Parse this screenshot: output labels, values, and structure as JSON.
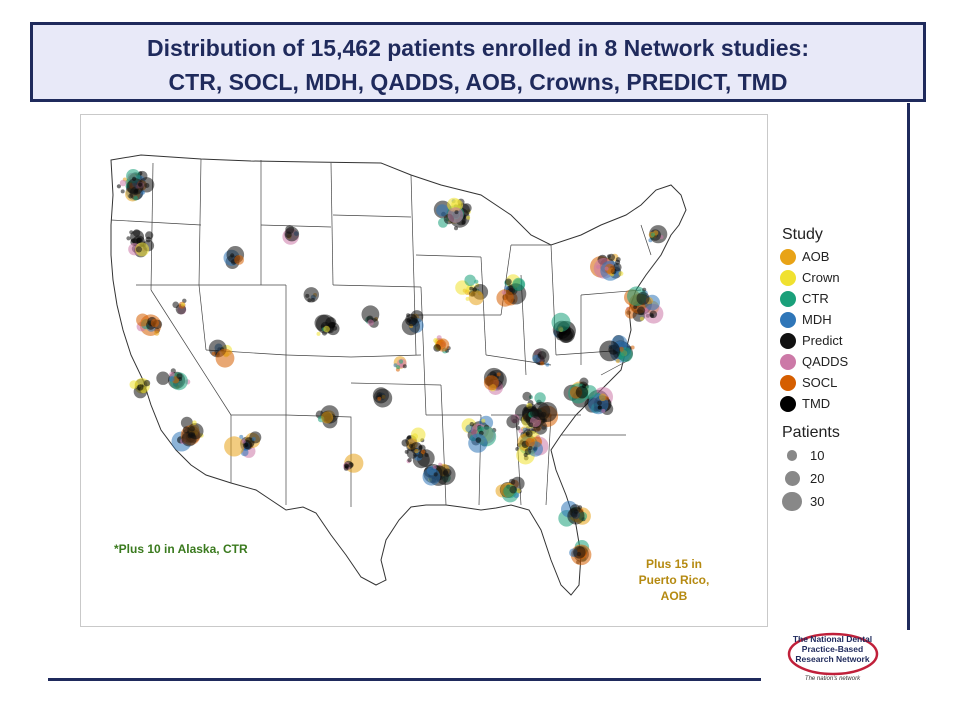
{
  "title": {
    "line1": "Distribution of 15,462 patients enrolled in 8 Network studies:",
    "line2": "CTR, SOCL, MDH, QADDS, AOB, Crowns, PREDICT, TMD"
  },
  "notes": {
    "alaska": "*Plus 10 in Alaska, CTR",
    "puerto_rico_line1": "Plus 15 in",
    "puerto_rico_line2": "Puerto Rico,",
    "puerto_rico_line3": "AOB"
  },
  "legend": {
    "study_title": "Study",
    "studies": [
      {
        "label": "AOB",
        "color": "#e8a317"
      },
      {
        "label": "Crown",
        "color": "#f0e130"
      },
      {
        "label": "CTR",
        "color": "#1aa07a"
      },
      {
        "label": "MDH",
        "color": "#2f76b8"
      },
      {
        "label": "Predict",
        "color": "#111111"
      },
      {
        "label": "QADDS",
        "color": "#cc79a7"
      },
      {
        "label": "SOCL",
        "color": "#d55e00"
      },
      {
        "label": "TMD",
        "color": "#000000"
      }
    ],
    "patients_title": "Patients",
    "sizes": [
      {
        "label": "10",
        "value": 10
      },
      {
        "label": "20",
        "value": 20
      },
      {
        "label": "30",
        "value": 30
      }
    ]
  },
  "logo": {
    "line1": "The National Dental",
    "line2": "Practice-Based",
    "line3": "Research Network",
    "tagline": "The nation's network"
  },
  "chart_data": {
    "type": "scatter",
    "title": "Distribution of 15,462 patients enrolled in 8 Network studies",
    "description": "Bubble map of patient enrollment sites across the contiguous United States; color = study, size = patients",
    "series": [
      {
        "name": "AOB",
        "color": "#e8a317"
      },
      {
        "name": "Crown",
        "color": "#f0e130"
      },
      {
        "name": "CTR",
        "color": "#1aa07a"
      },
      {
        "name": "MDH",
        "color": "#2f76b8"
      },
      {
        "name": "Predict",
        "color": "#111111"
      },
      {
        "name": "QADDS",
        "color": "#cc79a7"
      },
      {
        "name": "SOCL",
        "color": "#d55e00"
      },
      {
        "name": "TMD",
        "color": "#000000"
      }
    ],
    "size_scale": [
      10,
      20,
      30
    ]
  }
}
